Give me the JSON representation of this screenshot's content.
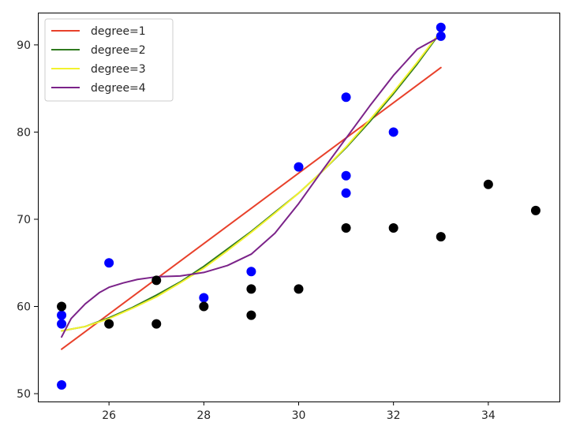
{
  "chart_data": {
    "type": "scatter",
    "title": "",
    "xlabel": "",
    "ylabel": "",
    "xlim": [
      24.5,
      35.5
    ],
    "ylim": [
      49.1,
      93.7
    ],
    "x_ticks": [
      26,
      28,
      30,
      32,
      34
    ],
    "y_ticks": [
      50,
      60,
      70,
      80,
      90
    ],
    "grid": false,
    "legend_position": "top-left",
    "scatter_series": [
      {
        "color": "#0000ff",
        "points": [
          [
            25,
            59
          ],
          [
            25,
            58
          ],
          [
            25,
            51
          ],
          [
            26,
            65
          ],
          [
            28,
            61
          ],
          [
            29,
            64
          ],
          [
            30,
            76
          ],
          [
            31,
            84
          ],
          [
            31,
            75
          ],
          [
            31,
            73
          ],
          [
            32,
            80
          ],
          [
            33,
            92
          ],
          [
            33,
            91
          ]
        ]
      },
      {
        "color": "#000000",
        "points": [
          [
            25,
            60
          ],
          [
            26,
            58
          ],
          [
            27,
            63
          ],
          [
            27,
            58
          ],
          [
            28,
            60
          ],
          [
            29,
            62
          ],
          [
            29,
            59
          ],
          [
            30,
            62
          ],
          [
            31,
            69
          ],
          [
            32,
            69
          ],
          [
            33,
            68
          ],
          [
            34,
            74
          ],
          [
            35,
            71
          ]
        ]
      }
    ],
    "fit_series": [
      {
        "name": "degree=1",
        "color": "#e8412b",
        "x": [
          25,
          33
        ],
        "y": [
          55.1,
          87.4
        ]
      },
      {
        "name": "degree=2",
        "color": "#2f7a1f",
        "x": [
          25,
          25.5,
          26,
          26.5,
          27,
          27.5,
          28,
          28.5,
          29,
          29.5,
          30,
          30.5,
          31,
          31.5,
          32,
          32.5,
          33
        ],
        "y": [
          57.2,
          57.7,
          58.7,
          59.9,
          61.3,
          62.8,
          64.6,
          66.6,
          68.6,
          70.8,
          73.0,
          75.5,
          78.2,
          81.2,
          84.4,
          87.8,
          91.5
        ]
      },
      {
        "name": "degree=3",
        "color": "#f2f22e",
        "x": [
          25,
          25.5,
          26,
          26.5,
          27,
          27.5,
          28,
          28.5,
          29,
          29.5,
          30,
          30.5,
          31,
          31.5,
          32,
          32.5,
          33
        ],
        "y": [
          57.2,
          57.7,
          58.6,
          59.8,
          61.1,
          62.7,
          64.4,
          66.4,
          68.5,
          70.7,
          73.0,
          75.5,
          78.3,
          81.4,
          84.6,
          88.0,
          91.6
        ]
      },
      {
        "name": "degree=4",
        "color": "#7b2389",
        "x": [
          25,
          25.2,
          25.5,
          25.8,
          26,
          26.3,
          26.6,
          27,
          27.5,
          28,
          28.5,
          29,
          29.5,
          30,
          30.5,
          31,
          31.5,
          32,
          32.5,
          33
        ],
        "y": [
          56.5,
          58.6,
          60.3,
          61.6,
          62.2,
          62.7,
          63.1,
          63.4,
          63.5,
          63.9,
          64.7,
          66.0,
          68.4,
          71.8,
          75.6,
          79.3,
          83.0,
          86.5,
          89.5,
          91.0
        ]
      }
    ]
  }
}
